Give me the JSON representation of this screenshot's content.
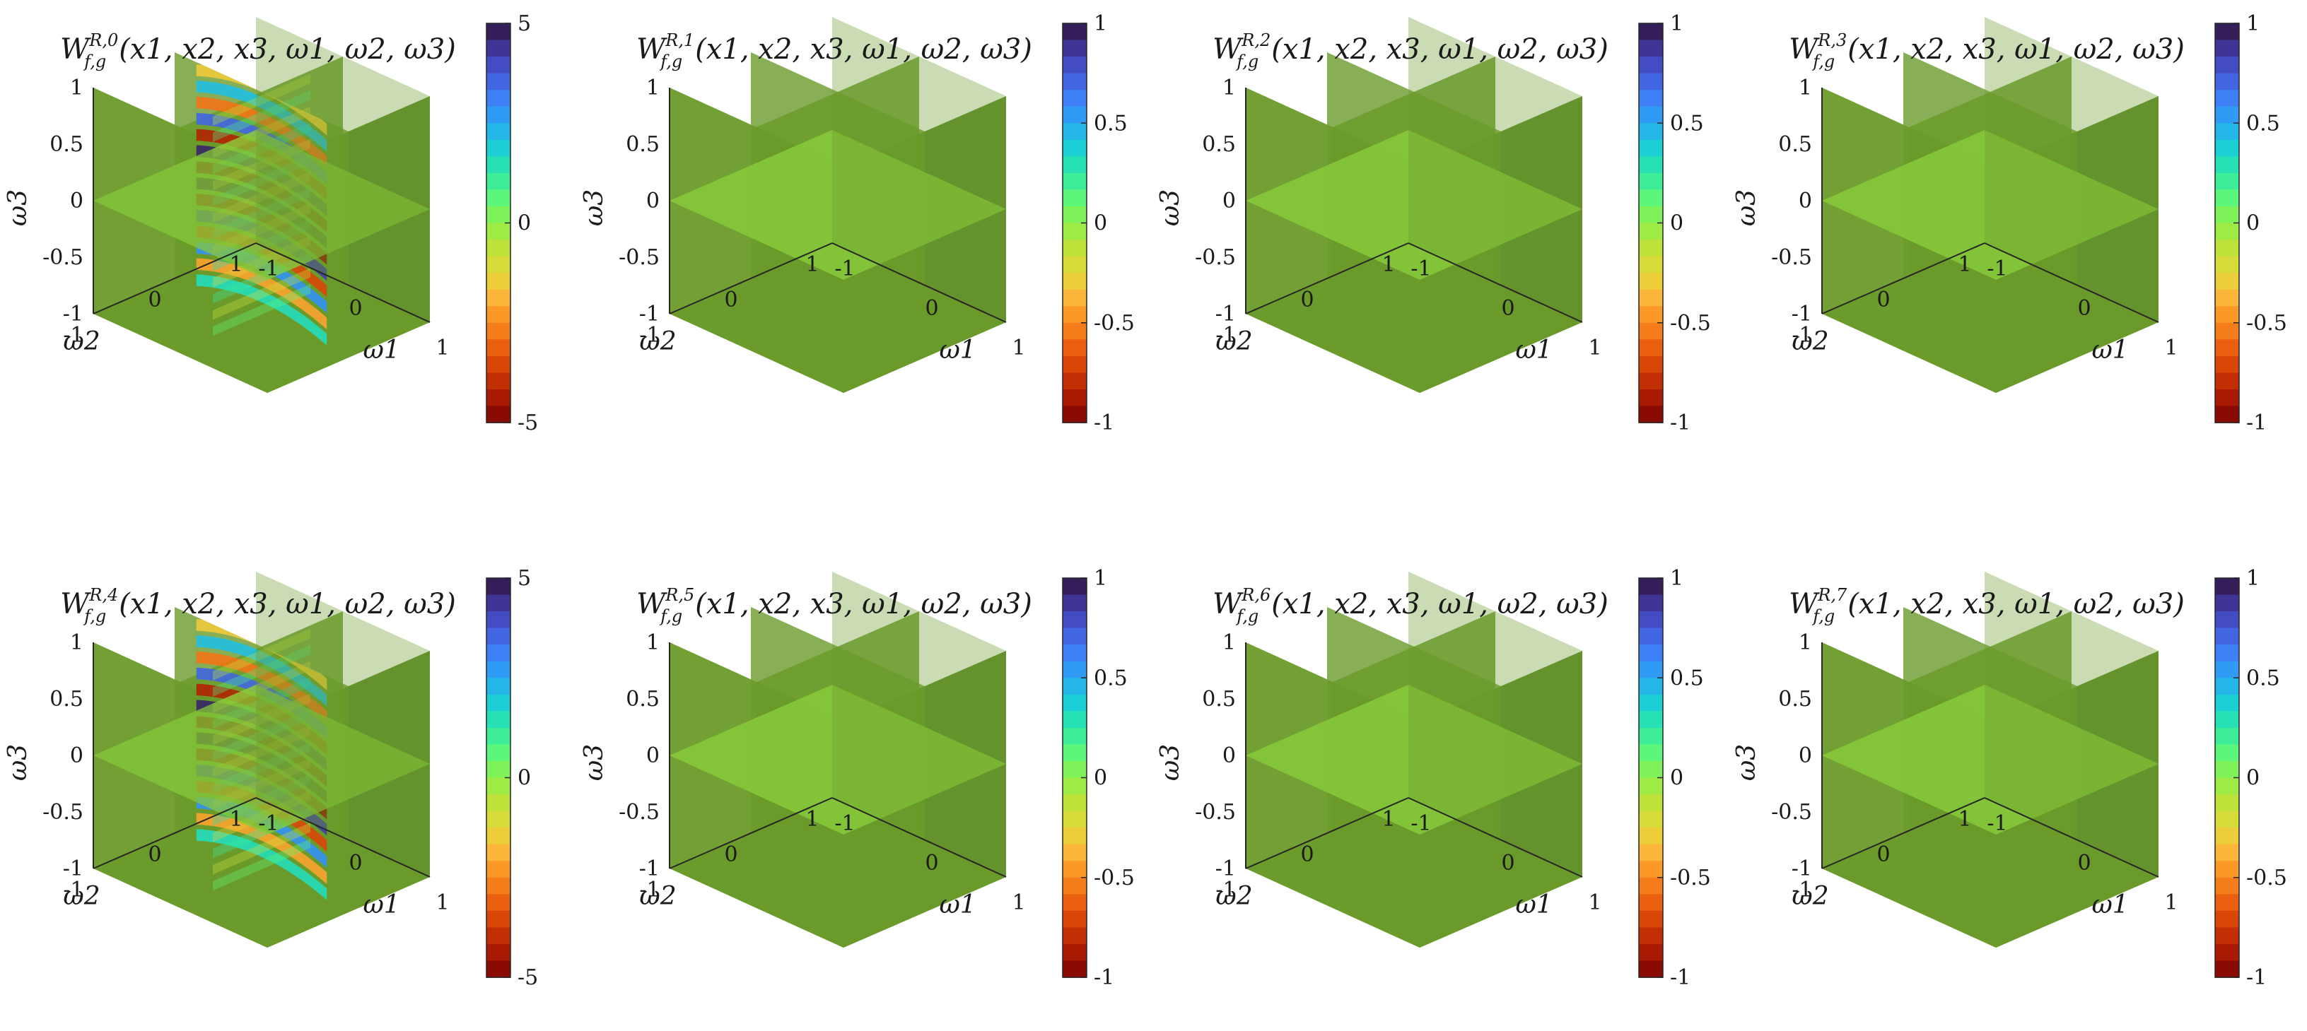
{
  "chart_data": [
    {
      "type": "heatmap",
      "title": {
        "base": "W",
        "sup": "R,0",
        "sub": "f,g",
        "args": "(x1, x2, x3, ω1, ω2, ω3)"
      },
      "xlabel": "ω1",
      "ylabel": "ω2",
      "zlabel": "ω3",
      "x_ticks": [
        "-1",
        "0",
        "1"
      ],
      "y_ticks": [
        "-1",
        "0",
        "1"
      ],
      "z_ticks": [
        "-1",
        "-0.5",
        "0",
        "0.5",
        "1"
      ],
      "xlim": [
        -1,
        1
      ],
      "ylim": [
        -1,
        1
      ],
      "zlim": [
        -1,
        1
      ],
      "colorbar": {
        "range": [
          -5,
          5
        ],
        "ticks": [
          "5",
          "0",
          "-5"
        ]
      },
      "pattern": {
        "type": "oscillating",
        "lobes": 7,
        "peak": 5
      }
    },
    {
      "type": "heatmap",
      "title": {
        "base": "W",
        "sup": "R,1",
        "sub": "f,g",
        "args": "(x1, x2, x3, ω1, ω2, ω3)"
      },
      "xlabel": "ω1",
      "ylabel": "ω2",
      "zlabel": "ω3",
      "x_ticks": [
        "-1",
        "0",
        "1"
      ],
      "y_ticks": [
        "-1",
        "0",
        "1"
      ],
      "z_ticks": [
        "-1",
        "-0.5",
        "0",
        "0.5",
        "1"
      ],
      "xlim": [
        -1,
        1
      ],
      "ylim": [
        -1,
        1
      ],
      "zlim": [
        -1,
        1
      ],
      "colorbar": {
        "range": [
          -1,
          1
        ],
        "ticks": [
          "1",
          "0.5",
          "0",
          "-0.5",
          "-1"
        ]
      },
      "pattern": {
        "type": "flat",
        "value": 0
      }
    },
    {
      "type": "heatmap",
      "title": {
        "base": "W",
        "sup": "R,2",
        "sub": "f,g",
        "args": "(x1, x2, x3, ω1, ω2, ω3)"
      },
      "xlabel": "ω1",
      "ylabel": "ω2",
      "zlabel": "ω3",
      "x_ticks": [
        "-1",
        "0",
        "1"
      ],
      "y_ticks": [
        "-1",
        "0",
        "1"
      ],
      "z_ticks": [
        "-1",
        "-0.5",
        "0",
        "0.5",
        "1"
      ],
      "xlim": [
        -1,
        1
      ],
      "ylim": [
        -1,
        1
      ],
      "zlim": [
        -1,
        1
      ],
      "colorbar": {
        "range": [
          -1,
          1
        ],
        "ticks": [
          "1",
          "0.5",
          "0",
          "-0.5",
          "-1"
        ]
      },
      "pattern": {
        "type": "flat",
        "value": 0
      }
    },
    {
      "type": "heatmap",
      "title": {
        "base": "W",
        "sup": "R,3",
        "sub": "f,g",
        "args": "(x1, x2, x3, ω1, ω2, ω3)"
      },
      "xlabel": "ω1",
      "ylabel": "ω2",
      "zlabel": "ω3",
      "x_ticks": [
        "-1",
        "0",
        "1"
      ],
      "y_ticks": [
        "-1",
        "0",
        "1"
      ],
      "z_ticks": [
        "-1",
        "-0.5",
        "0",
        "0.5",
        "1"
      ],
      "xlim": [
        -1,
        1
      ],
      "ylim": [
        -1,
        1
      ],
      "zlim": [
        -1,
        1
      ],
      "colorbar": {
        "range": [
          -1,
          1
        ],
        "ticks": [
          "1",
          "0.5",
          "0",
          "-0.5",
          "-1"
        ]
      },
      "pattern": {
        "type": "flat",
        "value": 0
      }
    },
    {
      "type": "heatmap",
      "title": {
        "base": "W",
        "sup": "R,4",
        "sub": "f,g",
        "args": "(x1, x2, x3, ω1, ω2, ω3)"
      },
      "xlabel": "ω1",
      "ylabel": "ω2",
      "zlabel": "ω3",
      "x_ticks": [
        "-1",
        "0",
        "1"
      ],
      "y_ticks": [
        "-1",
        "0",
        "1"
      ],
      "z_ticks": [
        "-1",
        "-0.5",
        "0",
        "0.5",
        "1"
      ],
      "xlim": [
        -1,
        1
      ],
      "ylim": [
        -1,
        1
      ],
      "zlim": [
        -1,
        1
      ],
      "colorbar": {
        "range": [
          -5,
          5
        ],
        "ticks": [
          "5",
          "0",
          "-5"
        ]
      },
      "pattern": {
        "type": "oscillating",
        "lobes": 7,
        "peak": 5
      }
    },
    {
      "type": "heatmap",
      "title": {
        "base": "W",
        "sup": "R,5",
        "sub": "f,g",
        "args": "(x1, x2, x3, ω1, ω2, ω3)"
      },
      "xlabel": "ω1",
      "ylabel": "ω2",
      "zlabel": "ω3",
      "x_ticks": [
        "-1",
        "0",
        "1"
      ],
      "y_ticks": [
        "-1",
        "0",
        "1"
      ],
      "z_ticks": [
        "-1",
        "-0.5",
        "0",
        "0.5",
        "1"
      ],
      "xlim": [
        -1,
        1
      ],
      "ylim": [
        -1,
        1
      ],
      "zlim": [
        -1,
        1
      ],
      "colorbar": {
        "range": [
          -1,
          1
        ],
        "ticks": [
          "1",
          "0.5",
          "0",
          "-0.5",
          "-1"
        ]
      },
      "pattern": {
        "type": "flat",
        "value": 0
      }
    },
    {
      "type": "heatmap",
      "title": {
        "base": "W",
        "sup": "R,6",
        "sub": "f,g",
        "args": "(x1, x2, x3, ω1, ω2, ω3)"
      },
      "xlabel": "ω1",
      "ylabel": "ω2",
      "zlabel": "ω3",
      "x_ticks": [
        "-1",
        "0",
        "1"
      ],
      "y_ticks": [
        "-1",
        "0",
        "1"
      ],
      "z_ticks": [
        "-1",
        "-0.5",
        "0",
        "0.5",
        "1"
      ],
      "xlim": [
        -1,
        1
      ],
      "ylim": [
        -1,
        1
      ],
      "zlim": [
        -1,
        1
      ],
      "colorbar": {
        "range": [
          -1,
          1
        ],
        "ticks": [
          "1",
          "0.5",
          "0",
          "-0.5",
          "-1"
        ]
      },
      "pattern": {
        "type": "flat",
        "value": 0
      }
    },
    {
      "type": "heatmap",
      "title": {
        "base": "W",
        "sup": "R,7",
        "sub": "f,g",
        "args": "(x1, x2, x3, ω1, ω2, ω3)"
      },
      "xlabel": "ω1",
      "ylabel": "ω2",
      "zlabel": "ω3",
      "x_ticks": [
        "-1",
        "0",
        "1"
      ],
      "y_ticks": [
        "-1",
        "0",
        "1"
      ],
      "z_ticks": [
        "-1",
        "-0.5",
        "0",
        "0.5",
        "1"
      ],
      "xlim": [
        -1,
        1
      ],
      "ylim": [
        -1,
        1
      ],
      "zlim": [
        -1,
        1
      ],
      "colorbar": {
        "range": [
          -1,
          1
        ],
        "ticks": [
          "1",
          "0.5",
          "0",
          "-0.5",
          "-1"
        ]
      },
      "pattern": {
        "type": "flat",
        "value": 0
      }
    }
  ],
  "colors": {
    "zero_face": "#6a9b2a",
    "zero_face_light": "#86c83a",
    "zero_face_dark": "#5a8a24",
    "axis": "#262626",
    "colormap": [
      "#7a0403",
      "#a81a03",
      "#cf3a04",
      "#eb5f10",
      "#f98a1f",
      "#fbb639",
      "#e6d93a",
      "#bde23a",
      "#8df049",
      "#5cf77a",
      "#2ee8a6",
      "#1bcfd4",
      "#28a8f4",
      "#3d80f6",
      "#4558d8",
      "#3f3596",
      "#30123b"
    ]
  }
}
